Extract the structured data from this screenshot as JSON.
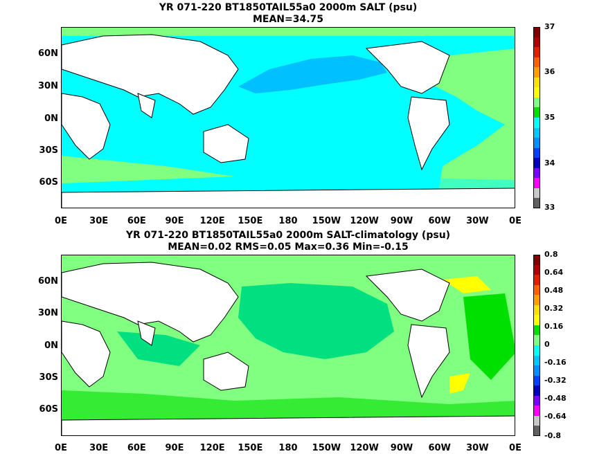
{
  "maps": [
    {
      "title_line1": "YR 071-220 BT1850TAIL55a0 2000m SALT (psu)",
      "title_line2": "MEAN=34.75",
      "lat_labels": [
        "60N",
        "30N",
        "0N",
        "30S",
        "60S"
      ],
      "lon_labels": [
        "0E",
        "30E",
        "60E",
        "90E",
        "120E",
        "150E",
        "180",
        "150W",
        "120W",
        "90W",
        "60W",
        "30W",
        "0E"
      ],
      "colorbar": {
        "labels": [
          "37",
          "36",
          "35",
          "34",
          "33"
        ],
        "colors": [
          "#800000",
          "#b00000",
          "#e02000",
          "#ff6000",
          "#ffa000",
          "#ffe000",
          "#ffff00",
          "#80ff80",
          "#00e000",
          "#00ffff",
          "#00c8ff",
          "#0090ff",
          "#0040ff",
          "#0000c0",
          "#8000ff",
          "#ff00ff",
          "#c8c8c8",
          "#606060"
        ]
      },
      "regions": {
        "pacific": "#00ffff",
        "north_pacific": "#00c0ff",
        "atlantic": "#80ff80",
        "southern": "#00ffff",
        "indian": "#00ffff"
      }
    },
    {
      "title_line1": "YR 071-220 BT1850TAIL55a0 2000m SALT-climatology (psu)",
      "title_line2": "MEAN=0.02   RMS=0.05   Max=0.36   Min=-0.15",
      "lat_labels": [
        "60N",
        "30N",
        "0N",
        "30S",
        "60S"
      ],
      "lon_labels": [
        "0E",
        "30E",
        "60E",
        "90E",
        "120E",
        "150E",
        "180",
        "150W",
        "120W",
        "90W",
        "60W",
        "30W",
        "0E"
      ],
      "colorbar": {
        "labels": [
          "0.8",
          "0.64",
          "0.48",
          "0.32",
          "0.16",
          "0",
          "-0.16",
          "-0.32",
          "-0.48",
          "-0.64",
          "-0.8"
        ],
        "colors": [
          "#800000",
          "#b00000",
          "#e02000",
          "#ff6000",
          "#ffa000",
          "#ffe000",
          "#ffff00",
          "#00e000",
          "#80ff80",
          "#00ffff",
          "#00c8ff",
          "#0090ff",
          "#0040ff",
          "#0000c0",
          "#8000ff",
          "#ff00ff",
          "#c8c8c8",
          "#606060"
        ]
      },
      "regions": {
        "pacific": "#00e080",
        "north_pacific": "#80ff80",
        "atlantic": "#80ff80",
        "southern": "#80ff80",
        "indian": "#80ff80"
      }
    }
  ]
}
